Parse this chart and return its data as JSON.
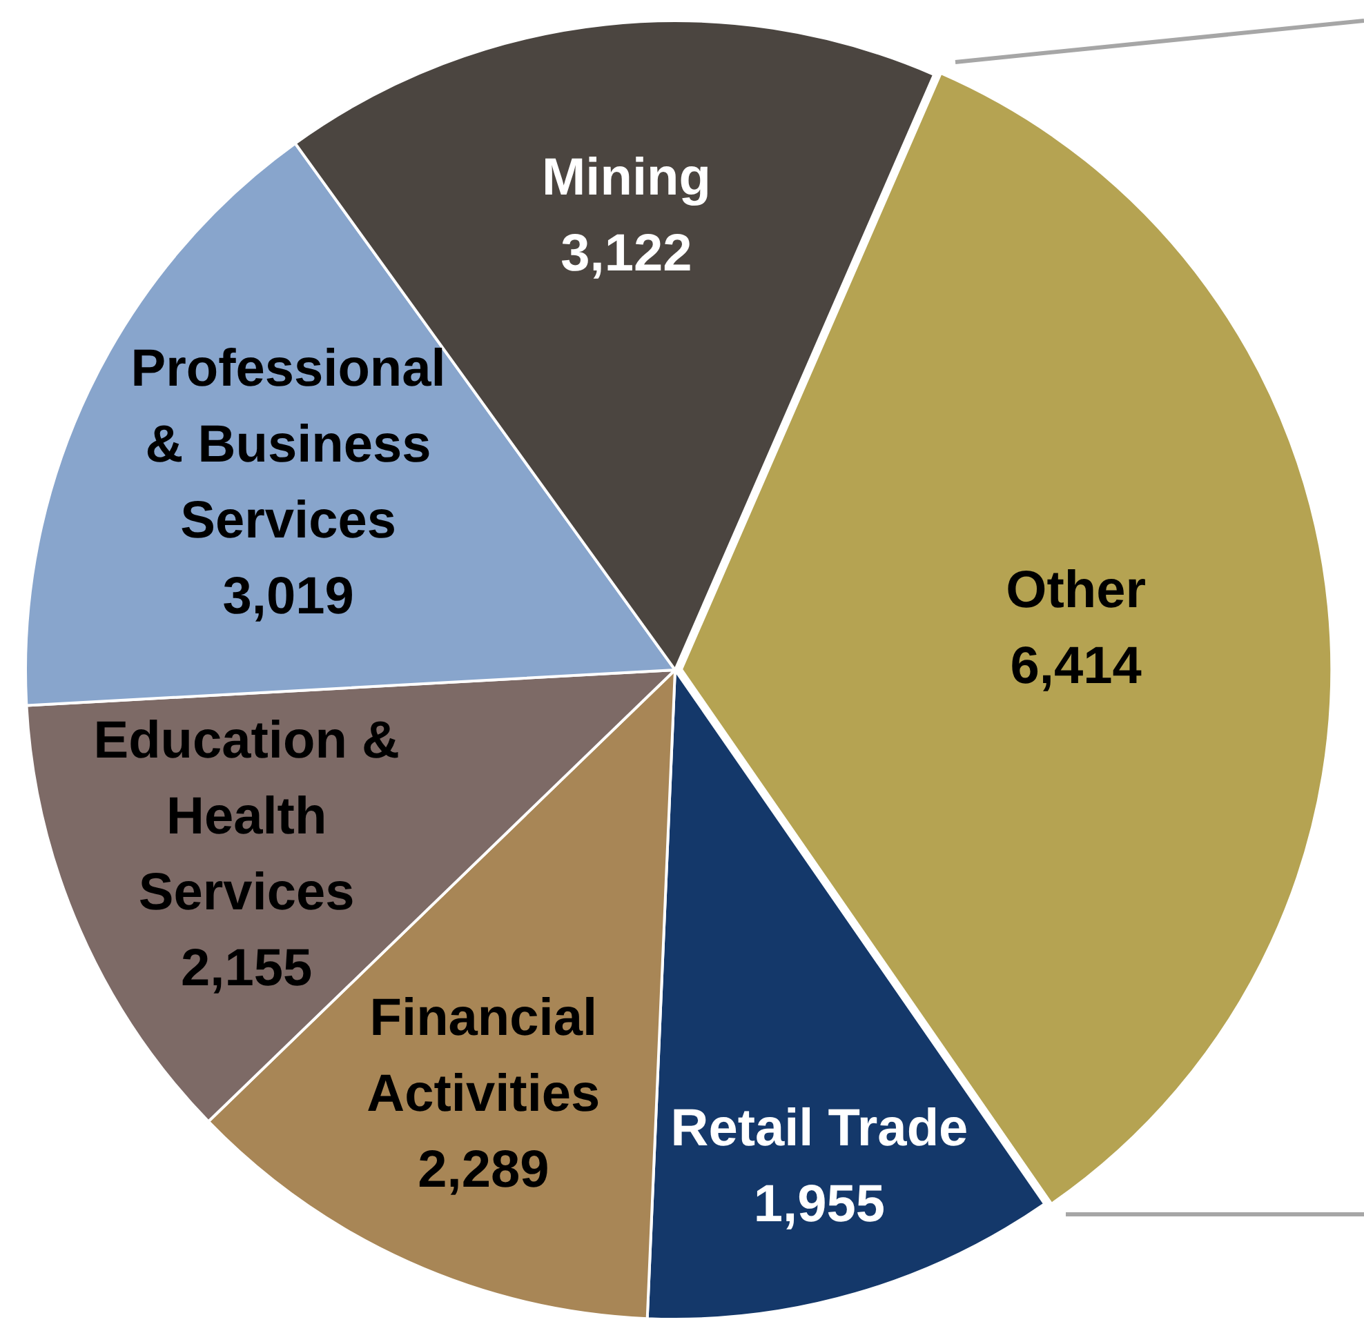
{
  "chart_data": {
    "type": "pie",
    "categories": [
      "Other",
      "Retail Trade",
      "Financial Activities",
      "Education & Health Services",
      "Professional & Business Services",
      "Mining"
    ],
    "values": [
      6414,
      1955,
      2289,
      2155,
      3019,
      3122
    ],
    "colors": [
      "#b5a352",
      "#14386a",
      "#a88656",
      "#7d6a66",
      "#88a5cc",
      "#4b4540"
    ],
    "value_labels": [
      "6,414",
      "1,955",
      "2,289",
      "2,155",
      "3,019",
      "3,122"
    ]
  }
}
